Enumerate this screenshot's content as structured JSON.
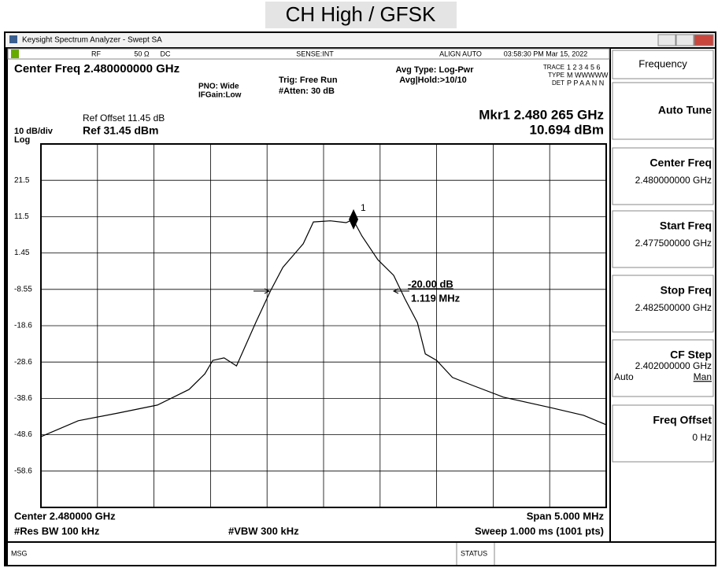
{
  "page_title": "CH High / GFSK",
  "window": {
    "title": "Keysight Spectrum Analyzer - Swept SA",
    "status_row": [
      "RF",
      "50 Ω",
      "DC",
      "SENSE:INT",
      "ALIGN AUTO",
      "03:58:30 PM Mar 15, 2022"
    ],
    "center_freq": "Center Freq 2.480000000 GHz",
    "pno": "PNO: Wide",
    "ifgain": "IFGain:Low",
    "trig": "Trig: Free Run",
    "atten": "#Atten: 30 dB",
    "avg_type": "Avg Type: Log-Pwr",
    "avg_hold": "Avg|Hold:>10/10",
    "trace_rows": [
      [
        "TRACE",
        "1 2 3 4 5 6"
      ],
      [
        "TYPE",
        "M WWWWW"
      ],
      [
        "DET",
        "P P A A N N"
      ]
    ],
    "ref_offset": "Ref Offset 11.45 dB",
    "scale": "10 dB/div",
    "ref_level": "Ref 31.45 dBm",
    "log": "Log",
    "marker_freq": "Mkr1 2.480 265 GHz",
    "marker_level": "10.694 dBm",
    "center": "Center 2.480000 GHz",
    "span": "Span 5.000 MHz",
    "rbw": "#Res BW 100 kHz",
    "vbw": "#VBW 300 kHz",
    "sweep": "Sweep  1.000 ms (1001 pts)",
    "msg": "MSG",
    "status": "STATUS"
  },
  "softkeys": {
    "header": "Frequency",
    "keys": [
      {
        "label": "Auto Tune"
      },
      {
        "label": "Center Freq",
        "value": "2.480000000 GHz"
      },
      {
        "label": "Start Freq",
        "value": "2.477500000 GHz"
      },
      {
        "label": "Stop Freq",
        "value": "2.482500000 GHz"
      },
      {
        "label": "CF Step",
        "value": "2.402000000 GHz",
        "options": [
          "Auto",
          "Man"
        ]
      },
      {
        "label": "Freq Offset",
        "value": "0 Hz"
      }
    ]
  },
  "chart_data": {
    "type": "line",
    "xlim": [
      2.4775,
      2.4825
    ],
    "ylim": [
      -68.55,
      31.45
    ],
    "yticks": [
      {
        "value": 21.45,
        "label": "21.5"
      },
      {
        "value": 11.45,
        "label": "11.5"
      },
      1.45,
      -8.55,
      {
        "value": -18.55,
        "label": "-18.6"
      },
      {
        "value": -28.55,
        "label": "-28.6"
      },
      {
        "value": -38.55,
        "label": "-38.6"
      },
      {
        "value": -48.55,
        "label": "-48.6"
      },
      {
        "value": -58.55,
        "label": "-58.6"
      }
    ],
    "grid": true,
    "x": [
      2.4775,
      2.47783,
      2.47818,
      2.47853,
      2.47881,
      2.47895,
      2.47902,
      2.47912,
      2.47923,
      2.4794,
      2.47953,
      2.47964,
      2.47982,
      2.47991,
      2.48006,
      2.4802,
      2.48026,
      2.48034,
      2.48048,
      2.48062,
      2.48072,
      2.48083,
      2.4809,
      2.481,
      2.48114,
      2.48132,
      2.48159,
      2.48201,
      2.4823,
      2.4825
    ],
    "series": [
      {
        "color": "#000000",
        "values": [
          -49.1,
          -44.7,
          -42.6,
          -40.4,
          -36.1,
          -31.8,
          -28.1,
          -27.4,
          -29.6,
          -17.7,
          -9.0,
          -2.5,
          4.0,
          10.0,
          10.3,
          9.8,
          10.7,
          6.1,
          -0.4,
          -4.7,
          -11.2,
          -17.7,
          -26.3,
          -28.1,
          -32.8,
          -35.0,
          -38.2,
          -41.1,
          -43.2,
          -45.8
        ]
      }
    ],
    "marker": {
      "x": 2.480265,
      "y": 10.694,
      "label": "1"
    },
    "annotations": [
      "-20.00 dB",
      "1.119 MHz"
    ]
  }
}
